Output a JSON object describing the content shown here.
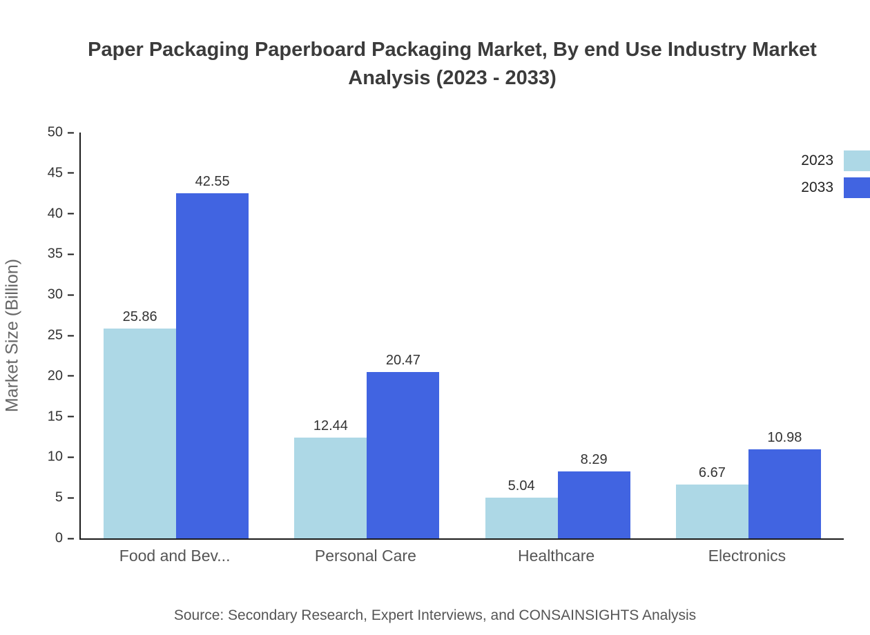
{
  "chart_data": {
    "type": "bar",
    "title": "Paper Packaging Paperboard Packaging Market, By end Use Industry Market Analysis (2023 - 2033)",
    "categories": [
      "Food and Bev...",
      "Personal Care",
      "Healthcare",
      "Electronics"
    ],
    "series": [
      {
        "name": "2023",
        "color": "#add8e6",
        "values": [
          25.86,
          12.44,
          5.04,
          6.67
        ]
      },
      {
        "name": "2033",
        "color": "#4164e1",
        "values": [
          42.55,
          20.47,
          8.29,
          10.98
        ]
      }
    ],
    "xlabel": "",
    "ylabel": "Market Size (Billion)",
    "ylim": [
      0,
      50
    ],
    "ytick_step": 5,
    "grid": false,
    "legend_position": "top-right",
    "source": "Source: Secondary Research, Expert Interviews, and CONSAINSIGHTS Analysis"
  }
}
